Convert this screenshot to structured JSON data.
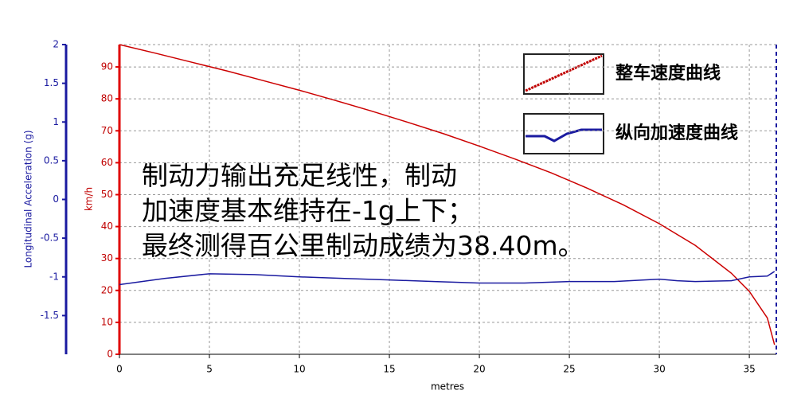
{
  "chart_data": {
    "type": "line",
    "xlabel": "metres",
    "ylabel": "km/h",
    "y2label": "Longitudinal Acceleration (g)",
    "annotations": [
      "制动力输出充足线性，制动",
      "加速度基本维持在-1g上下；",
      "最终测得百公里制动成绩为38.40m。"
    ],
    "xlim": [
      0,
      36.5
    ],
    "xticks": [
      0,
      5,
      10,
      15,
      20,
      25,
      30,
      35
    ],
    "ylim": [
      0,
      97
    ],
    "yticks": [
      0,
      10,
      20,
      30,
      40,
      50,
      60,
      70,
      80,
      90
    ],
    "y2lim": [
      -2,
      2
    ],
    "y2ticks": [
      2,
      1.5,
      1,
      0.5,
      0,
      -0.5,
      -1,
      -1.5
    ],
    "grid": true,
    "legend": "upper right",
    "series": [
      {
        "name": "整车速度曲线",
        "color": "#cc0000",
        "x": [
          0,
          2,
          4,
          6,
          8,
          10,
          12,
          14,
          16,
          18,
          20,
          22,
          24,
          26,
          28,
          30,
          32,
          34,
          35,
          36,
          36.4
        ],
        "values": [
          97,
          94.3,
          91.5,
          88.7,
          85.7,
          82.7,
          79.5,
          76.2,
          72.7,
          69.1,
          65.2,
          61.1,
          56.8,
          52,
          46.8,
          40.9,
          34.1,
          25.4,
          19.7,
          11.4,
          3
        ]
      },
      {
        "name": "纵向加速度曲线",
        "color": "#1a1aa0",
        "axis": "y2",
        "x": [
          0,
          2.5,
          5,
          7.5,
          10,
          12.5,
          15,
          17.5,
          20,
          22.5,
          25,
          27.5,
          30,
          31,
          32,
          34,
          35,
          36,
          36.4
        ],
        "values": [
          -1.1,
          -1.02,
          -0.96,
          -0.97,
          -1,
          -1.02,
          -1.04,
          -1.06,
          -1.08,
          -1.08,
          -1.06,
          -1.06,
          -1.03,
          -1.05,
          -1.06,
          -1.05,
          -1,
          -0.99,
          -0.93
        ]
      }
    ]
  }
}
